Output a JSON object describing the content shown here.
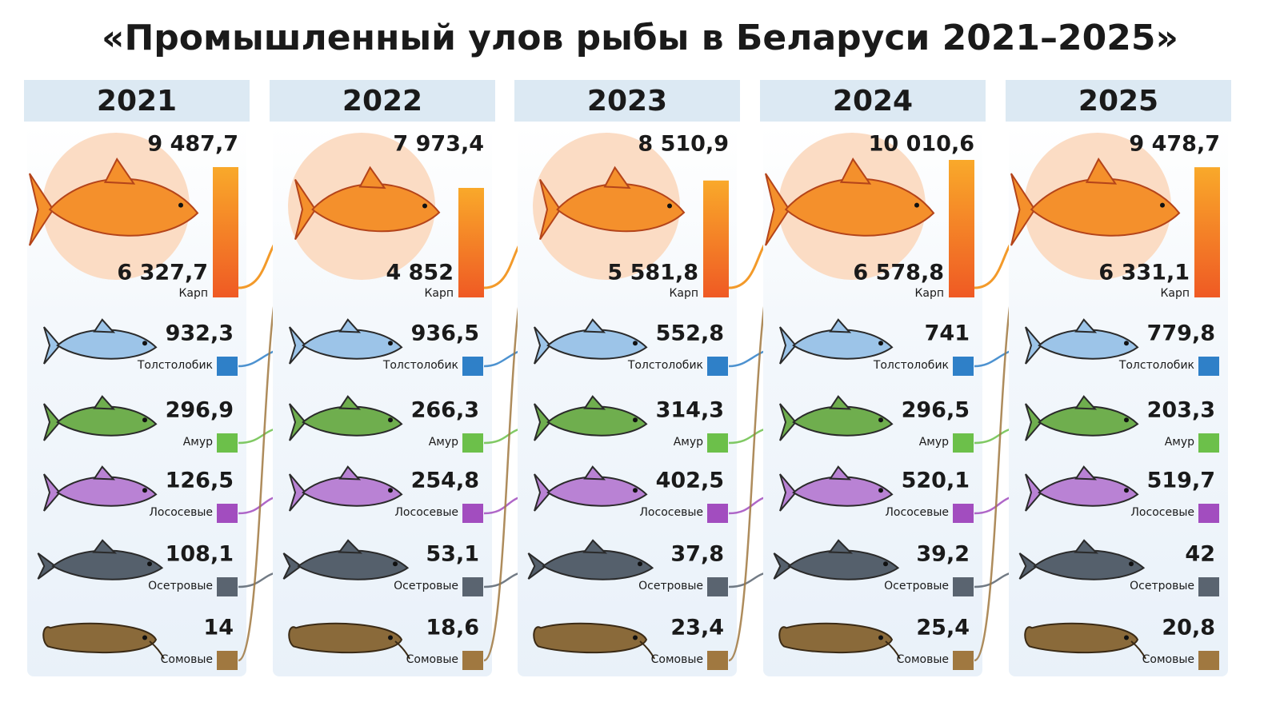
{
  "title": "«Промышленный улов рыбы в Беларуси 2021–2025»",
  "species": [
    {
      "name": "Карп",
      "color": "#f07a22",
      "body": "#f4902c"
    },
    {
      "name": "Толстолобик",
      "color": "#2f80c8",
      "body": "#9cc4e8"
    },
    {
      "name": "Амур",
      "color": "#6cc04a",
      "body": "#6fae4e"
    },
    {
      "name": "Лососевые",
      "color": "#a24dbf",
      "body": "#b982d4"
    },
    {
      "name": "Осетровые",
      "color": "#5a6470",
      "body": "#55606c"
    },
    {
      "name": "Сомовые",
      "color": "#a07840",
      "body": "#8a6a3a"
    }
  ],
  "columns": [
    {
      "year": "2021",
      "total": {
        "value": 9487.7,
        "label": "9 487,7"
      },
      "values": [
        {
          "value": 6327.7,
          "label": "6 327,7"
        },
        {
          "value": 932.3,
          "label": "932,3"
        },
        {
          "value": 296.9,
          "label": "296,9"
        },
        {
          "value": 126.5,
          "label": "126,5"
        },
        {
          "value": 108.1,
          "label": "108,1"
        },
        14
      ]
    },
    {
      "year": "2022",
      "total": {
        "value": 7973.4,
        "label": "7 973,4"
      },
      "values": [
        {
          "value": 4852,
          "label": "4 852"
        },
        {
          "value": 936.5,
          "label": "936,5"
        },
        {
          "value": 266.3,
          "label": "266,3"
        },
        {
          "value": 254.8,
          "label": "254,8"
        },
        {
          "value": 53.1,
          "label": "53,1"
        },
        {
          "value": 18.6,
          "label": "18,6"
        }
      ]
    },
    {
      "year": "2023",
      "total": {
        "value": 8510.9,
        "label": "8 510,9"
      },
      "values": [
        {
          "value": 5581.8,
          "label": "5 581,8"
        },
        {
          "value": 552.8,
          "label": "552,8"
        },
        {
          "value": 314.3,
          "label": "314,3"
        },
        {
          "value": 402.5,
          "label": "402,5"
        },
        {
          "value": 37.8,
          "label": "37,8"
        },
        {
          "value": 23.4,
          "label": "23,4"
        }
      ]
    },
    {
      "year": "2024",
      "total": {
        "value": 10010.6,
        "label": "10 010,6"
      },
      "values": [
        {
          "value": 6578.8,
          "label": "6 578,8"
        },
        741,
        {
          "value": 296.5,
          "label": "296,5"
        },
        {
          "value": 520.1,
          "label": "520,1"
        },
        {
          "value": 39.2,
          "label": "39,2"
        },
        {
          "value": 25.4,
          "label": "25,4"
        }
      ]
    },
    {
      "year": "2025",
      "total": {
        "value": 9478.7,
        "label": "9 478,7"
      },
      "values": [
        {
          "value": 6331.1,
          "label": "6 331,1"
        },
        {
          "value": 779.8,
          "label": "779,8"
        },
        {
          "value": 203.3,
          "label": "203,3"
        },
        {
          "value": 519.7,
          "label": "519,7"
        },
        42,
        {
          "value": 20.8,
          "label": "20,8"
        }
      ]
    }
  ]
}
